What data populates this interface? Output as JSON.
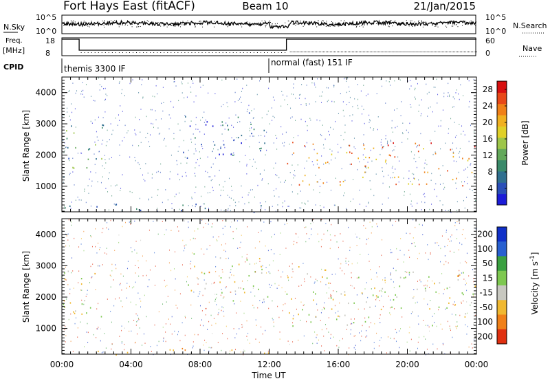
{
  "header": {
    "station": "Fort Hays East (fitACF)",
    "beam": "Beam 10",
    "date": "21/Jan/2015"
  },
  "noise_panel": {
    "left_label": "N.Sky",
    "right_label": "N.Search",
    "left_ticks": [
      "10^5",
      "10^0"
    ],
    "right_ticks": [
      "10^5",
      "10^0"
    ]
  },
  "freq_panel": {
    "left_label": "Freq.",
    "left_unit": "[MHz]",
    "right_label": "Nave",
    "left_ticks": [
      "18",
      "8"
    ],
    "right_ticks": [
      "60",
      "0"
    ]
  },
  "cpid": {
    "label": "CPID",
    "modes": [
      {
        "name": "themis 3300 IF",
        "start_hour": 0,
        "end_hour": 12
      },
      {
        "name": "normal (fast) 151 IF",
        "start_hour": 12,
        "end_hour": 24
      }
    ]
  },
  "chart_data": [
    {
      "type": "heatmap",
      "title": "",
      "xlabel": "",
      "ylabel": "Slant Range [km]",
      "x_range_hours": [
        0,
        24
      ],
      "xlim": [
        "00:00",
        "24:00"
      ],
      "ylim": [
        180,
        4500
      ],
      "yticks": [
        1000,
        2000,
        3000,
        4000
      ],
      "colorbar": {
        "label": "Power [dB]",
        "ticks": [
          4,
          8,
          12,
          16,
          20,
          24,
          28
        ],
        "range": [
          0,
          30
        ],
        "colors": [
          "#1c1cd8",
          "#2a4fb8",
          "#2f6f8f",
          "#3a8a6a",
          "#63a85a",
          "#9ec64a",
          "#e0d028",
          "#f0b020",
          "#f08018",
          "#e84818",
          "#d81010"
        ]
      },
      "features": [
        {
          "desc": "early band",
          "start_hour": 0,
          "end_hour": 2.5,
          "range_min": 1300,
          "range_max": 3100,
          "power_db": 10
        },
        {
          "desc": "mid arc",
          "start_hour": 7,
          "end_hour": 12,
          "range_min": 1900,
          "range_max": 3400,
          "power_db": 6
        },
        {
          "desc": "main band",
          "start_hour": 13,
          "end_hour": 24,
          "range_min": 1000,
          "range_max": 2500,
          "power_db": 22
        },
        {
          "desc": "ground scatter floor",
          "start_hour": 0,
          "end_hour": 12,
          "range_min": 180,
          "range_max": 450,
          "power_db": 6
        }
      ]
    },
    {
      "type": "heatmap",
      "title": "",
      "xlabel": "Time UT",
      "ylabel": "Slant Range [km]",
      "xticks": [
        "00:00",
        "04:00",
        "08:00",
        "12:00",
        "16:00",
        "20:00",
        "00:00"
      ],
      "ylim": [
        180,
        4500
      ],
      "yticks": [
        1000,
        2000,
        3000,
        4000
      ],
      "colorbar": {
        "label": "Velocity [m s^-1]",
        "ticks": [
          200,
          100,
          50,
          15,
          -15,
          -50,
          -100,
          -200
        ],
        "colors": [
          "#1030c8",
          "#2860d0",
          "#3aa040",
          "#7ec850",
          "#c8c8c0",
          "#f0b830",
          "#f08018",
          "#e03010"
        ]
      },
      "features": [
        {
          "desc": "early band",
          "start_hour": 0,
          "end_hour": 2.5,
          "range_min": 1300,
          "range_max": 3100,
          "velocity": 0
        },
        {
          "desc": "mid arc",
          "start_hour": 7,
          "end_hour": 12,
          "range_min": 1900,
          "range_max": 3400,
          "velocity": 0
        },
        {
          "desc": "main band",
          "start_hour": 13,
          "end_hour": 24,
          "range_min": 1100,
          "range_max": 3000,
          "velocity": 0
        },
        {
          "desc": "ground scatter floor",
          "start_hour": 2,
          "end_hour": 12,
          "range_min": 180,
          "range_max": 400,
          "velocity": -30
        }
      ]
    }
  ],
  "colors": {
    "axis": "#000000"
  }
}
